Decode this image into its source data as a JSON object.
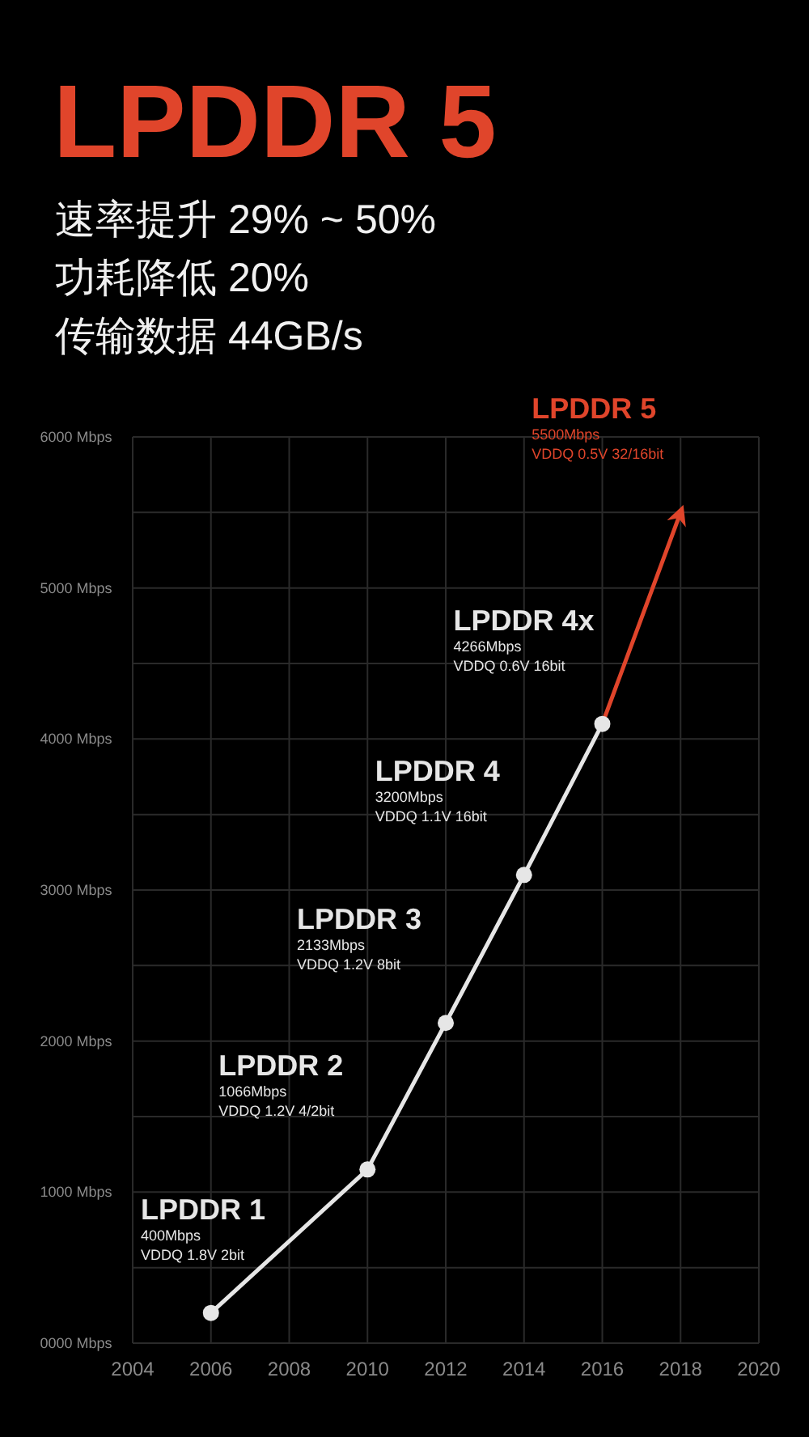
{
  "chart_data": {
    "type": "line",
    "title": "LPDDR 5",
    "subtitle": "速率提升 29% ~ 50%\n功耗降低 20%\n传输数据 44GB/s",
    "xlim": [
      2004,
      2020
    ],
    "xticks": [
      2004,
      2006,
      2008,
      2010,
      2012,
      2014,
      2016,
      2018,
      2020
    ],
    "ylim": [
      0,
      6000
    ],
    "yticks": [
      {
        "value": 0,
        "label": "0000 Mbps"
      },
      {
        "value": 500,
        "label": null
      },
      {
        "value": 1000,
        "label": "1000 Mbps"
      },
      {
        "value": 1500,
        "label": null
      },
      {
        "value": 2000,
        "label": "2000 Mbps"
      },
      {
        "value": 2500,
        "label": null
      },
      {
        "value": 3000,
        "label": "3000 Mbps"
      },
      {
        "value": 3500,
        "label": null
      },
      {
        "value": 4000,
        "label": "4000 Mbps"
      },
      {
        "value": 4500,
        "label": null
      },
      {
        "value": 5000,
        "label": "5000 Mbps"
      },
      {
        "value": 5500,
        "label": null
      },
      {
        "value": 6000,
        "label": "6000 Mbps"
      }
    ],
    "grid": true,
    "marker": "circle",
    "series": [
      {
        "color": "#e6e6e6",
        "x": [
          2006,
          2010,
          2012,
          2014,
          2016
        ],
        "values": [
          200,
          1150,
          2120,
          3100,
          4100
        ]
      },
      {
        "color": "#e0452b",
        "marker": "none",
        "x": [
          2016,
          2018
        ],
        "values": [
          4100,
          5500
        ]
      }
    ],
    "annotations": [
      {
        "text": "LPDDR 1\n400Mbps\nVDDQ 1.8V 2bit",
        "x": 2006,
        "y": 200
      },
      {
        "text": "LPDDR 2\n1066Mbps\nVDDQ 1.2V 4/2bit",
        "x": 2010,
        "y": 1150
      },
      {
        "text": "LPDDR 3\n2133Mbps\nVDDQ 1.2V 8bit",
        "x": 2012,
        "y": 2120
      },
      {
        "text": "LPDDR 4\n3200Mbps\nVDDQ 1.1V 16bit",
        "x": 2014,
        "y": 3100
      },
      {
        "text": "LPDDR 4x\n4266Mbps\nVDDQ 0.6V 16bit",
        "x": 2016,
        "y": 4100
      },
      {
        "text": "LPDDR 5\n5500Mbps\nVDDQ 0.5V 32/16bit",
        "x": 2018,
        "y": 5500
      }
    ]
  }
}
